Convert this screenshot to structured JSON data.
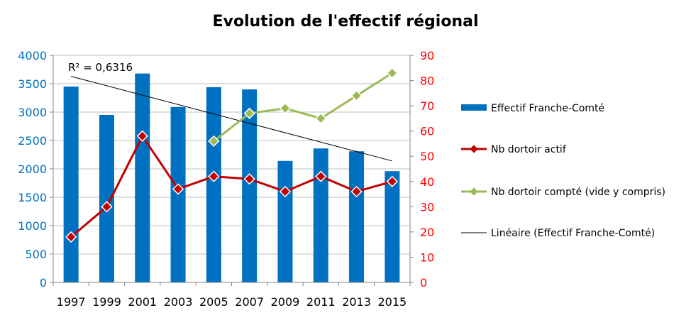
{
  "chart_data": {
    "type": "bar",
    "title": "Evolution de l'effectif régional",
    "categories": [
      "1997",
      "1999",
      "2001",
      "2003",
      "2005",
      "2007",
      "2009",
      "2011",
      "2013",
      "2015"
    ],
    "y_left": {
      "min": 0,
      "max": 4000,
      "step": 500,
      "ticks": [
        "0",
        "500",
        "1000",
        "1500",
        "2000",
        "2500",
        "3000",
        "3500",
        "4000"
      ]
    },
    "y_right": {
      "min": 0,
      "max": 90,
      "step": 10,
      "ticks": [
        "0",
        "10",
        "20",
        "30",
        "40",
        "50",
        "60",
        "70",
        "80",
        "90"
      ]
    },
    "series": [
      {
        "name": "Effectif Franche-Comté",
        "kind": "bar",
        "axis": "left",
        "color": "#0070C0",
        "values": [
          3450,
          2950,
          3680,
          3090,
          3440,
          3400,
          2140,
          2360,
          2310,
          1960
        ]
      },
      {
        "name": "Nb dortoir actif",
        "kind": "line",
        "axis": "right",
        "color": "#C00000",
        "values": [
          18,
          30,
          58,
          37,
          42,
          41,
          36,
          42,
          36,
          40
        ]
      },
      {
        "name": "Nb dortoir compté (vide y compris)",
        "kind": "line",
        "axis": "right",
        "color": "#9BBB59",
        "values": [
          null,
          null,
          null,
          null,
          56,
          67,
          69,
          65,
          74,
          83
        ]
      },
      {
        "name": "Linéaire (Effectif Franche-Comté)",
        "kind": "trendline",
        "axis": "left",
        "color": "#000000",
        "start": 3630,
        "end": 2140
      }
    ],
    "annotation": "R² = 0,6316",
    "legend_position": "right",
    "grid": true
  }
}
